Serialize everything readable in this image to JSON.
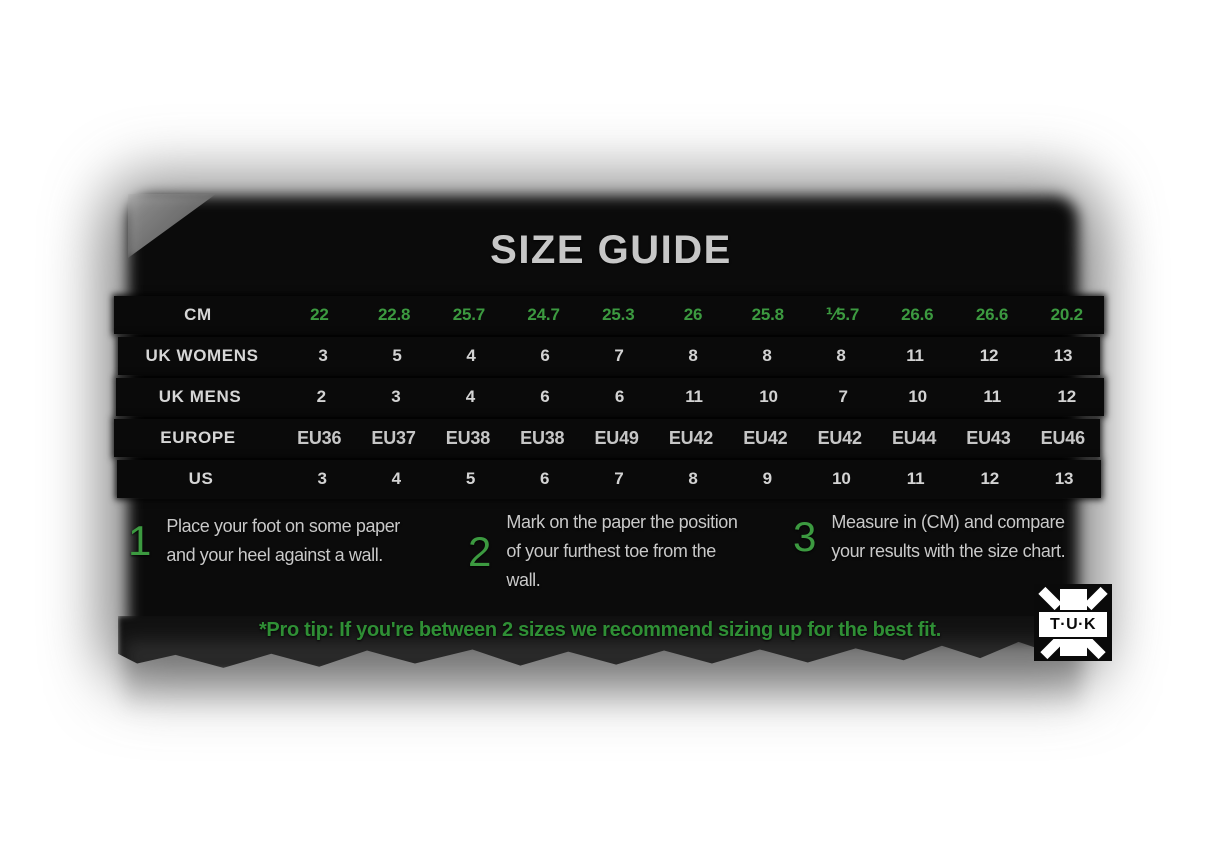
{
  "title": "SIZE GUIDE",
  "chart_data": {
    "type": "table",
    "title": "SIZE GUIDE",
    "rows": [
      {
        "label": "CM",
        "values": [
          "22",
          "22.8",
          "25.7",
          "24.7",
          "25.3",
          "26",
          "25.8",
          "⅟5.7",
          "26.6",
          "26.6",
          "20.2"
        ]
      },
      {
        "label": "UK WOMENS",
        "values": [
          "3",
          "5",
          "4",
          "6",
          "7",
          "8",
          "8",
          "8",
          "11",
          "12",
          "13"
        ]
      },
      {
        "label": "UK MENS",
        "values": [
          "2",
          "3",
          "4",
          "6",
          "6",
          "11",
          "10",
          "7",
          "10",
          "11",
          "12"
        ]
      },
      {
        "label": "EUROPE",
        "values": [
          "EU36",
          "EU37",
          "EU38",
          "EU38",
          "EU49",
          "EU42",
          "EU42",
          "EU42",
          "EU44",
          "EU43",
          "EU46"
        ]
      },
      {
        "label": "US",
        "values": [
          "3",
          "4",
          "5",
          "6",
          "7",
          "8",
          "9",
          "10",
          "11",
          "12",
          "13"
        ]
      }
    ]
  },
  "steps": [
    {
      "number": "1",
      "text": "Place your foot on some paper and your heel against a wall."
    },
    {
      "number": "2",
      "text": "Mark on the paper the position of your furthest toe from the wall."
    },
    {
      "number": "3",
      "text": "Measure in (CM) and compare your results with the size chart."
    }
  ],
  "pro_tip": "*Pro tip: If you're between 2 sizes we recommend sizing up for the best fit.",
  "logo_text": "T·U·K",
  "colors": {
    "accent_green": "#3c9a40",
    "tip_green": "#2f8f35",
    "text_light": "#d3d3d3",
    "panel_black": "#0b0b0b"
  }
}
